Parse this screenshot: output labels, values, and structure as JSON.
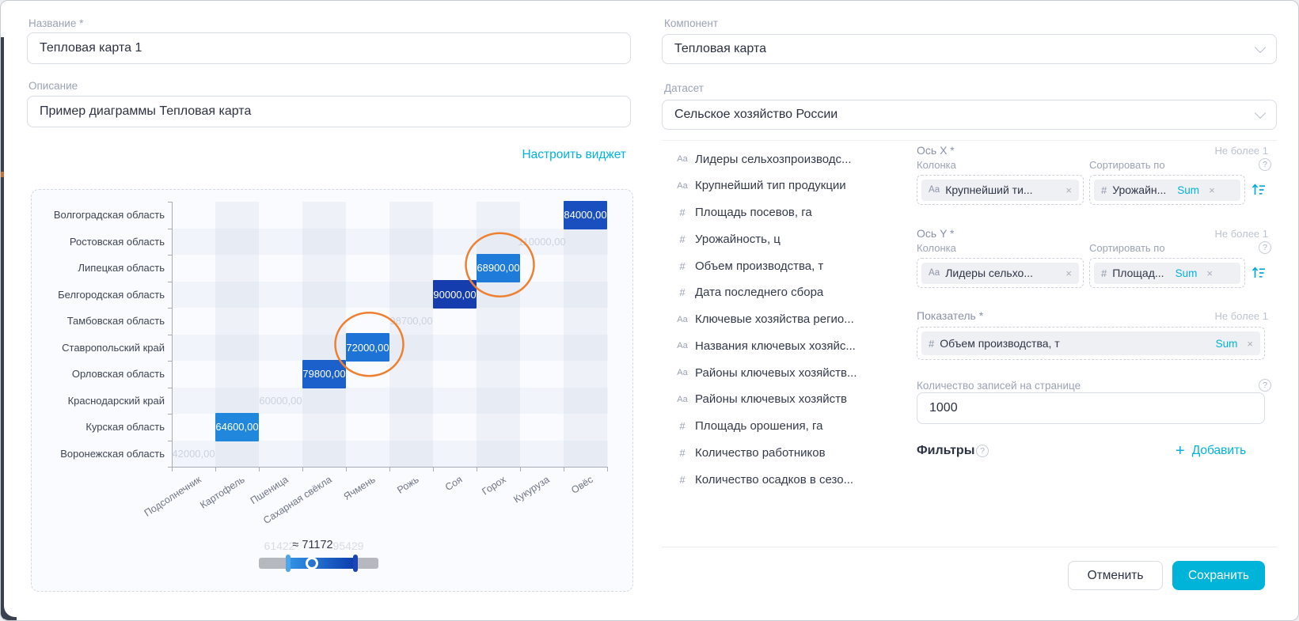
{
  "colors": {
    "accent": "#00b3d9",
    "annotation": "#ee8032",
    "axis": "#a6abb8"
  },
  "help_glyph": "?",
  "dialog": {
    "name": {
      "label": "Название *",
      "value": "Тепловая карта 1"
    },
    "description": {
      "label": "Описание",
      "value": "Пример диаграммы Тепловая карта"
    },
    "configure_link": "Настроить виджет",
    "component": {
      "label": "Компонент",
      "value": "Тепловая карта"
    },
    "dataset": {
      "label": "Датасет",
      "value": "Сельское хозяйство России"
    },
    "fields": [
      {
        "icon": "Аа",
        "name": "Лидеры сельхозпроизводс..."
      },
      {
        "icon": "Аа",
        "name": "Крупнейший тип продукции"
      },
      {
        "icon": "#",
        "name": "Площадь посевов, га"
      },
      {
        "icon": "#",
        "name": "Урожайность, ц"
      },
      {
        "icon": "#",
        "name": "Объем производства, т"
      },
      {
        "icon": "#",
        "name": "Дата последнего сбора"
      },
      {
        "icon": "Аа",
        "name": "Ключевые хозяйства регио..."
      },
      {
        "icon": "Аа",
        "name": "Названия ключевых хозяйс..."
      },
      {
        "icon": "Аа",
        "name": "Районы ключевых хозяйств..."
      },
      {
        "icon": "Аа",
        "name": "Районы ключевых хозяйств"
      },
      {
        "icon": "#",
        "name": "Площадь орошения, га"
      },
      {
        "icon": "#",
        "name": "Количество работников"
      },
      {
        "icon": "#",
        "name": "Количество осадков в сезо..."
      }
    ],
    "axis_x": {
      "title": "Ось X *",
      "limit": "Не более 1",
      "column_label": "Колонка",
      "sort_label": "Сортировать по",
      "column_chip": {
        "icon": "Аа",
        "label": "Крупнейший ти...",
        "remove": "×"
      },
      "sort_chip": {
        "icon": "#",
        "label": "Урожайн...",
        "agg": "Sum",
        "remove": "×"
      }
    },
    "axis_y": {
      "title": "Ось Y *",
      "limit": "Не более 1",
      "column_label": "Колонка",
      "sort_label": "Сортировать по",
      "column_chip": {
        "icon": "Аа",
        "label": "Лидеры сельхо...",
        "remove": "×"
      },
      "sort_chip": {
        "icon": "#",
        "label": "Площад...",
        "agg": "Sum",
        "remove": "×"
      }
    },
    "measure": {
      "title": "Показатель *",
      "limit": "Не более 1",
      "chip": {
        "icon": "#",
        "label": "Объем производства, т",
        "agg": "Sum",
        "remove": "×"
      }
    },
    "page_size": {
      "label": "Количество записей на странице",
      "value": "1000"
    },
    "filters": {
      "label": "Фильтры",
      "plus": "+",
      "add": "Добавить"
    },
    "buttons": {
      "cancel": "Отменить",
      "save": "Сохранить"
    }
  },
  "chart_data": {
    "type": "heatmap",
    "x_categories": [
      "Подсолнечник",
      "Картофель",
      "Пшеница",
      "Сахарная свёкла",
      "Ячмень",
      "Рожь",
      "Соя",
      "Горох",
      "Кукуруза",
      "Овёс"
    ],
    "y_categories": [
      "Волгоградская область",
      "Ростовская область",
      "Липецкая область",
      "Белгородская область",
      "Тамбовская область",
      "Ставропольский край",
      "Орловская область",
      "Краснодарский край",
      "Курская область",
      "Воронежская область"
    ],
    "cells": [
      {
        "x": "Овёс",
        "y": "Волгоградская область",
        "label": "84000,00",
        "value": 84000,
        "state": "active",
        "color": "#1a4fc0"
      },
      {
        "x": "Кукуруза",
        "y": "Ростовская область",
        "label": "110000,00",
        "value": 110000,
        "state": "muted"
      },
      {
        "x": "Горох",
        "y": "Липецкая область",
        "label": "68900,00",
        "value": 68900,
        "state": "active",
        "color": "#1e7bd9",
        "annotated": true
      },
      {
        "x": "Соя",
        "y": "Белгородская область",
        "label": "90000,00",
        "value": 90000,
        "state": "active",
        "color": "#153dae"
      },
      {
        "x": "Рожь",
        "y": "Тамбовская область",
        "label": "98700,00",
        "value": 98700,
        "state": "muted"
      },
      {
        "x": "Ячмень",
        "y": "Ставропольский край",
        "label": "72000,00",
        "value": 72000,
        "state": "active",
        "color": "#1e74d6",
        "annotated": true
      },
      {
        "x": "Сахарная свёкла",
        "y": "Орловская область",
        "label": "79800,00",
        "value": 79800,
        "state": "active",
        "color": "#1b60cb"
      },
      {
        "x": "Пшеница",
        "y": "Краснодарский край",
        "label": "60000,00",
        "value": 60000,
        "state": "muted"
      },
      {
        "x": "Картофель",
        "y": "Курская область",
        "label": "64600,00",
        "value": 64600,
        "state": "active",
        "color": "#2187dd"
      },
      {
        "x": "Подсолнечник",
        "y": "Воронежская область",
        "label": "42000,00",
        "value": 42000,
        "state": "muted"
      }
    ],
    "range_slider": {
      "low_label": "61422",
      "current_label": "≈ 71172",
      "high_label": "95429",
      "min": 61422,
      "max": 95429
    }
  }
}
